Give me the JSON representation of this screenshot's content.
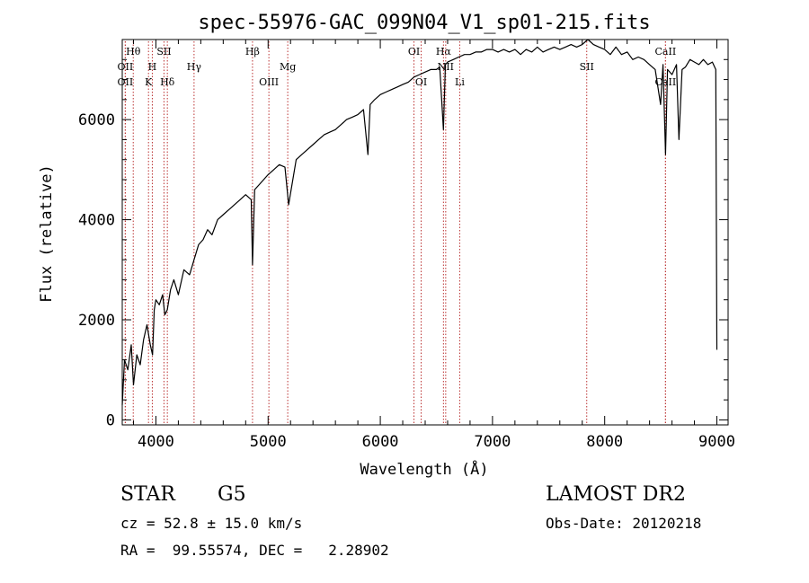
{
  "chart_data": {
    "type": "line",
    "title": "spec-55976-GAC_099N04_V1_sp01-215.fits",
    "xlabel": "Wavelength (Å)",
    "ylabel": "Flux (relative)",
    "xlim": [
      3700,
      9100
    ],
    "ylim": [
      -100,
      7600
    ],
    "xticks": [
      4000,
      5000,
      6000,
      7000,
      8000,
      9000
    ],
    "yticks": [
      0,
      2000,
      4000,
      6000
    ],
    "xtick_labels": [
      "4000",
      "5000",
      "6000",
      "7000",
      "8000",
      "9000"
    ],
    "ytick_labels": [
      "0",
      "2000",
      "4000",
      "6000"
    ],
    "grid": false,
    "series": [
      {
        "x": [
          3700,
          3720,
          3750,
          3780,
          3800,
          3830,
          3860,
          3890,
          3920,
          3950,
          3970,
          3985,
          4000,
          4030,
          4060,
          4080,
          4101,
          4130,
          4160,
          4200,
          4250,
          4300,
          4340,
          4380,
          4420,
          4460,
          4500,
          4550,
          4600,
          4650,
          4700,
          4750,
          4800,
          4850,
          4861,
          4880,
          4920,
          4960,
          5000,
          5050,
          5100,
          5150,
          5183,
          5250,
          5300,
          5350,
          5400,
          5450,
          5500,
          5550,
          5600,
          5650,
          5700,
          5750,
          5800,
          5850,
          5890,
          5910,
          5950,
          6000,
          6050,
          6100,
          6150,
          6200,
          6250,
          6300,
          6350,
          6400,
          6450,
          6500,
          6530,
          6563,
          6580,
          6600,
          6650,
          6700,
          6750,
          6800,
          6850,
          6900,
          6950,
          7000,
          7050,
          7100,
          7150,
          7200,
          7250,
          7300,
          7350,
          7400,
          7450,
          7500,
          7550,
          7600,
          7650,
          7700,
          7750,
          7800,
          7850,
          7900,
          7950,
          8000,
          8050,
          8100,
          8150,
          8200,
          8250,
          8300,
          8350,
          8400,
          8450,
          8498,
          8520,
          8542,
          8560,
          8600,
          8640,
          8662,
          8690,
          8720,
          8760,
          8800,
          8840,
          8880,
          8920,
          8960,
          8990,
          9000
        ],
        "y": [
          300,
          1200,
          1000,
          1500,
          700,
          1300,
          1100,
          1600,
          1900,
          1500,
          1300,
          2200,
          2400,
          2300,
          2500,
          2100,
          2200,
          2600,
          2800,
          2500,
          3000,
          2900,
          3200,
          3500,
          3600,
          3800,
          3700,
          4000,
          4100,
          4200,
          4300,
          4400,
          4500,
          4400,
          3100,
          4600,
          4700,
          4800,
          4900,
          5000,
          5100,
          5050,
          4300,
          5200,
          5300,
          5400,
          5500,
          5600,
          5700,
          5750,
          5800,
          5900,
          6000,
          6050,
          6100,
          6200,
          5300,
          6300,
          6400,
          6500,
          6550,
          6600,
          6650,
          6700,
          6750,
          6850,
          6900,
          6950,
          7000,
          7000,
          7050,
          5800,
          7100,
          7150,
          7200,
          7250,
          7300,
          7300,
          7350,
          7350,
          7400,
          7400,
          7350,
          7400,
          7350,
          7400,
          7300,
          7400,
          7350,
          7450,
          7350,
          7400,
          7450,
          7400,
          7450,
          7500,
          7450,
          7500,
          7600,
          7500,
          7450,
          7400,
          7300,
          7450,
          7300,
          7350,
          7200,
          7250,
          7200,
          7100,
          7000,
          6300,
          7100,
          5300,
          7000,
          6900,
          7100,
          5600,
          7000,
          7050,
          7200,
          7150,
          7100,
          7200,
          7100,
          7150,
          7000,
          1400
        ]
      }
    ],
    "line_markers": [
      {
        "label": "Hθ",
        "x": 3798,
        "row": 1
      },
      {
        "label": "OII",
        "x": 3727,
        "row": 2
      },
      {
        "label": "OII",
        "x": 3727,
        "row": 3
      },
      {
        "label": "H",
        "x": 3968,
        "row": 2
      },
      {
        "label": "K",
        "x": 3934,
        "row": 3
      },
      {
        "label": "SII",
        "x": 4072,
        "row": 1
      },
      {
        "label": "Hδ",
        "x": 4102,
        "row": 3
      },
      {
        "label": "Hγ",
        "x": 4340,
        "row": 2
      },
      {
        "label": "Hβ",
        "x": 4861,
        "row": 1
      },
      {
        "label": "OIII",
        "x": 5007,
        "row": 3
      },
      {
        "label": "Mg",
        "x": 5175,
        "row": 2
      },
      {
        "label": "OI",
        "x": 6300,
        "row": 1
      },
      {
        "label": "OI",
        "x": 6364,
        "row": 3
      },
      {
        "label": "Hα",
        "x": 6563,
        "row": 1
      },
      {
        "label": "NII",
        "x": 6583,
        "row": 2
      },
      {
        "label": "Li",
        "x": 6708,
        "row": 3
      },
      {
        "label": "SII",
        "x": 7840,
        "row": 2
      },
      {
        "label": "CaII",
        "x": 8542,
        "row": 1
      },
      {
        "label": "CaII",
        "x": 8542,
        "row": 3
      }
    ]
  },
  "info": {
    "object_class": "STAR",
    "subclass": "G5",
    "survey": "LAMOST DR2",
    "velocity": "cz = 52.8 ± 15.0 km/s",
    "obs_date": "Obs-Date: 20120218",
    "coords": "RA =  99.55574, DEC =   2.28902"
  }
}
